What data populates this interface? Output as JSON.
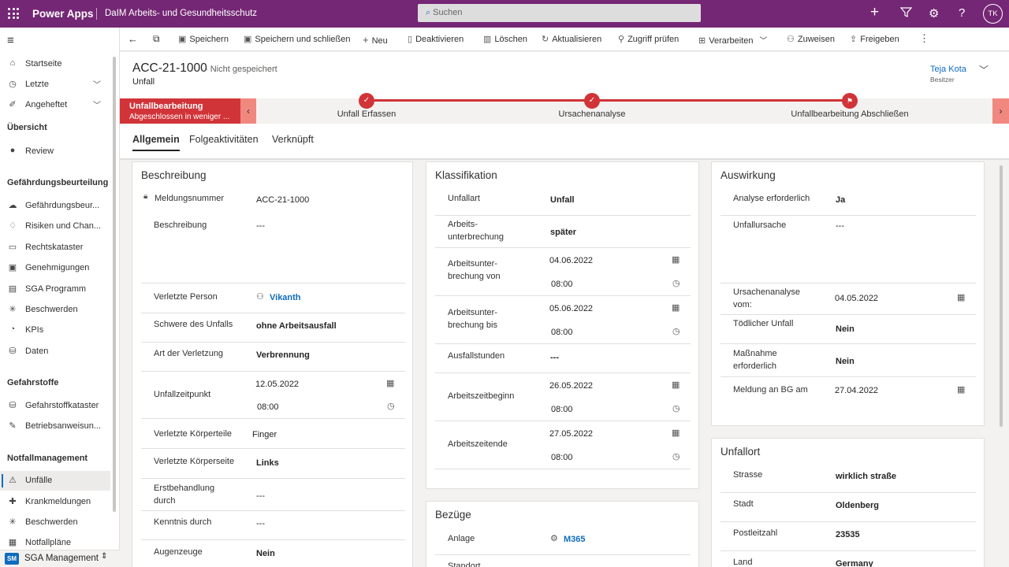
{
  "topbar": {
    "brand": "Power Apps",
    "app_name": "DaIM Arbeits- und Gesundheitsschutz",
    "search_placeholder": "Suchen",
    "user_initials": "TK"
  },
  "sidebar": {
    "items": [
      {
        "label": "Startseite",
        "icon": "home-icon"
      },
      {
        "label": "Letzte",
        "icon": "clock-icon"
      },
      {
        "label": "Angeheftet",
        "icon": "pin-icon"
      }
    ],
    "groups": [
      {
        "title": "Übersicht",
        "items": [
          {
            "label": "Review"
          }
        ]
      },
      {
        "title": "Gefährdungsbeurteilung",
        "items": [
          {
            "label": "Gefährdungsbeur..."
          },
          {
            "label": "Risiken und Chan..."
          },
          {
            "label": "Rechtskataster"
          },
          {
            "label": "Genehmigungen"
          },
          {
            "label": "SGA Programm"
          },
          {
            "label": "Beschwerden"
          },
          {
            "label": "KPIs"
          },
          {
            "label": "Daten"
          }
        ]
      },
      {
        "title": "Gefahrstoffe",
        "items": [
          {
            "label": "Gefahrstoffkataster"
          },
          {
            "label": "Betriebsanweisun..."
          }
        ]
      },
      {
        "title": "Notfallmanagement",
        "items": [
          {
            "label": "Unfälle"
          },
          {
            "label": "Krankmeldungen"
          },
          {
            "label": "Beschwerden"
          },
          {
            "label": "Notfallpläne"
          }
        ]
      }
    ],
    "area": {
      "badge": "SM",
      "label": "SGA Management"
    }
  },
  "commands": [
    "Speichern",
    "Speichern und schließen",
    "Neu",
    "Deaktivieren",
    "Löschen",
    "Aktualisieren",
    "Zugriff prüfen",
    "Verarbeiten",
    "Zuweisen",
    "Freigeben"
  ],
  "record": {
    "title": "ACC-21-1000",
    "status": "- Nicht gespeichert",
    "entity": "Unfall",
    "owner": "Teja Kota",
    "owner_role": "Besitzer"
  },
  "bpf": {
    "active_stage": "Unfallbearbeitung",
    "active_sub": "Abgeschlossen in weniger ...",
    "stages": [
      "Unfall Erfassen",
      "Ursachenanalyse",
      "Unfallbearbeitung Abschließen"
    ]
  },
  "tabs": [
    "Allgemein",
    "Folgeaktivitäten",
    "Verknüpft"
  ],
  "beschreibung": {
    "title": "Beschreibung",
    "meldungsnummer": {
      "label": "Meldungsnummer",
      "value": "ACC-21-1000"
    },
    "beschreibung": {
      "label": "Beschreibung",
      "value": "---"
    },
    "verletzte_person": {
      "label": "Verletzte Person",
      "value": "Vikanth"
    },
    "schwere": {
      "label": "Schwere des Unfalls",
      "value": "ohne Arbeitsausfall"
    },
    "art": {
      "label": "Art der Verletzung",
      "value": "Verbrennung"
    },
    "zeitpunkt": {
      "label": "Unfallzeitpunkt",
      "date": "12.05.2022",
      "time": "08:00"
    },
    "koerperteile": {
      "label": "Verletzte Körperteile",
      "value": "Finger"
    },
    "koerperseite": {
      "label": "Verletzte Körperseite",
      "value": "Links"
    },
    "erstbehandlung": {
      "label": "Erstbehandlung durch",
      "value": "---"
    },
    "kenntnis": {
      "label": "Kenntnis durch",
      "value": "---"
    },
    "augenzeuge": {
      "label": "Augenzeuge",
      "value": "Nein"
    }
  },
  "klassifikation": {
    "title": "Klassifikation",
    "unfallart": {
      "label": "Unfallart",
      "value": "Unfall"
    },
    "unterbrechung": {
      "label": "Arbeits-\nunterbrechung",
      "value": "später"
    },
    "unterbrechung_von": {
      "label": "Arbeitsunter-\nbrechung von",
      "date": "04.06.2022",
      "time": "08:00"
    },
    "unterbrechung_bis": {
      "label": "Arbeitsunter-\nbrechung bis",
      "date": "05.06.2022",
      "time": "08:00"
    },
    "ausfallstunden": {
      "label": "Ausfallstunden",
      "value": "---"
    },
    "zeitbeginn": {
      "label": "Arbeitszeitbeginn",
      "date": "26.05.2022",
      "time": "08:00"
    },
    "zeitende": {
      "label": "Arbeitszeitende",
      "date": "27.05.2022",
      "time": "08:00"
    }
  },
  "bezuege": {
    "title": "Bezüge",
    "anlage": {
      "label": "Anlage",
      "value": "M365"
    },
    "standort": {
      "label": "Standort"
    }
  },
  "auswirkung": {
    "title": "Auswirkung",
    "analyse": {
      "label": "Analyse erforderlich",
      "value": "Ja"
    },
    "ursache": {
      "label": "Unfallursache",
      "value": "---"
    },
    "analyse_vom": {
      "label": "Ursachenanalyse\nvom:",
      "date": "04.05.2022"
    },
    "toedlich": {
      "label": "Tödlicher Unfall",
      "value": "Nein"
    },
    "massnahme": {
      "label": "Maßnahme\nerforderlich",
      "value": "Nein"
    },
    "bg": {
      "label": "Meldung an BG am",
      "date": "27.04.2022"
    }
  },
  "unfallort": {
    "title": "Unfallort",
    "strasse": {
      "label": "Strasse",
      "value": "wirklich straße"
    },
    "stadt": {
      "label": "Stadt",
      "value": "Oldenberg"
    },
    "plz": {
      "label": "Postleitzahl",
      "value": "23535"
    },
    "land": {
      "label": "Land",
      "value": "Germany"
    }
  },
  "colors": {
    "brand": "#742774",
    "accent": "#d13438",
    "link": "#0f6cbd"
  }
}
